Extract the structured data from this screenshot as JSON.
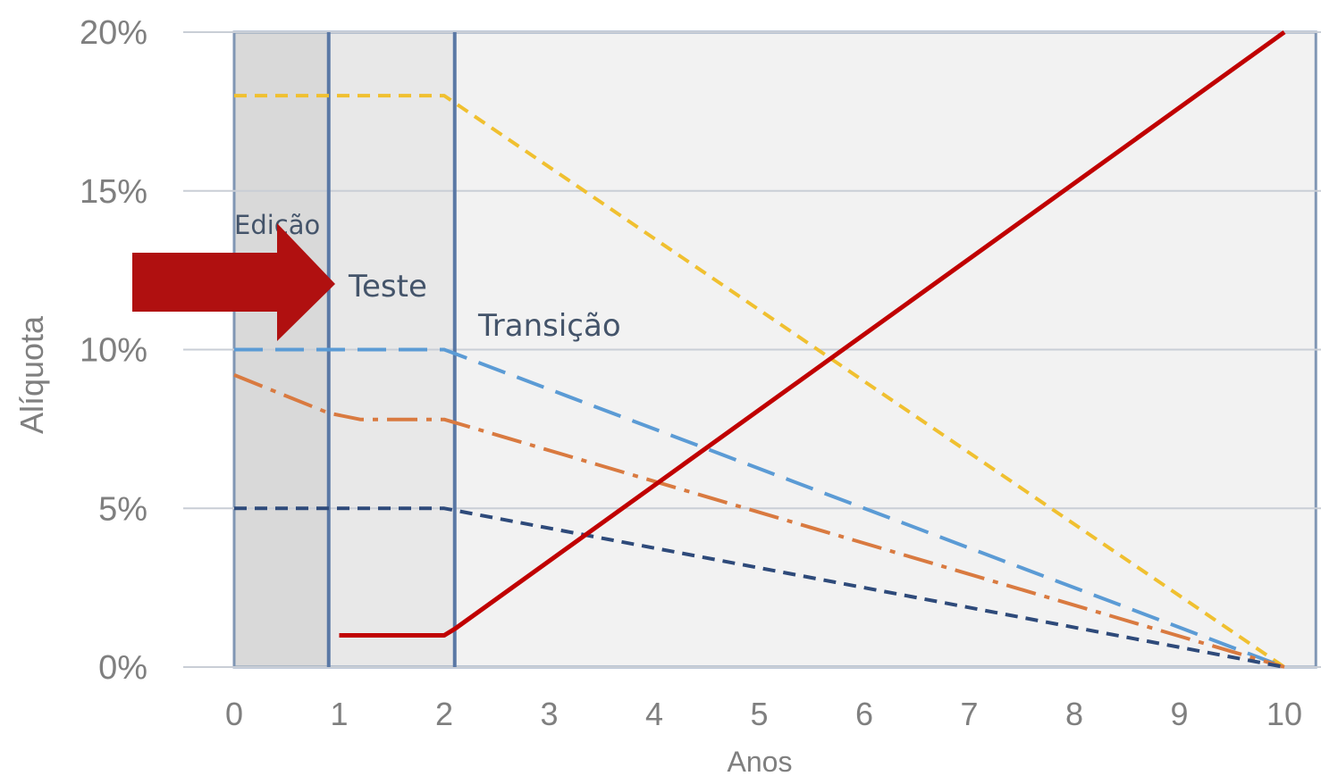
{
  "chart_data": {
    "type": "line",
    "xlabel": "Anos",
    "ylabel": "Alíquota",
    "xlim": [
      0,
      10
    ],
    "ylim": [
      0,
      20
    ],
    "x_ticks": [
      "0",
      "1",
      "2",
      "3",
      "4",
      "5",
      "6",
      "7",
      "8",
      "9",
      "10"
    ],
    "y_ticks": [
      {
        "value": 0,
        "label": "0%"
      },
      {
        "value": 5,
        "label": "5%"
      },
      {
        "value": 10,
        "label": "10%"
      },
      {
        "value": 15,
        "label": "15%"
      },
      {
        "value": 20,
        "label": "20%"
      }
    ],
    "grid": true,
    "phases": [
      {
        "label": "Edição",
        "x_start": 0,
        "x_end": 0.9,
        "color": "#d9d9d9"
      },
      {
        "label": "Teste",
        "x_start": 0.9,
        "x_end": 2.1,
        "color": "#e8e8e8"
      },
      {
        "label": "Transição",
        "x_start": 2.1,
        "x_end": 10.3,
        "color": "#f2f2f2"
      }
    ],
    "series": [
      {
        "color": "#c00000",
        "style": "solid",
        "x": [
          1,
          2,
          2.1,
          10
        ],
        "values": [
          1,
          1,
          1.2,
          20
        ]
      },
      {
        "color": "#f0c030",
        "style": "dash-short",
        "x": [
          0,
          2,
          10
        ],
        "values": [
          18,
          18,
          0
        ]
      },
      {
        "color": "#5b9bd5",
        "style": "dash-long",
        "x": [
          0,
          2,
          10
        ],
        "values": [
          10,
          10,
          0
        ]
      },
      {
        "color": "#d97a40",
        "style": "dash-dot",
        "x": [
          0,
          0.9,
          1.2,
          2,
          10
        ],
        "values": [
          9.2,
          8,
          7.8,
          7.8,
          0
        ]
      },
      {
        "color": "#2e4a7a",
        "style": "dash-short",
        "x": [
          0,
          2,
          10
        ],
        "values": [
          5,
          5,
          0
        ]
      }
    ],
    "annotations": [
      {
        "type": "arrow",
        "color": "#b01010",
        "points_to": "Teste"
      }
    ]
  }
}
